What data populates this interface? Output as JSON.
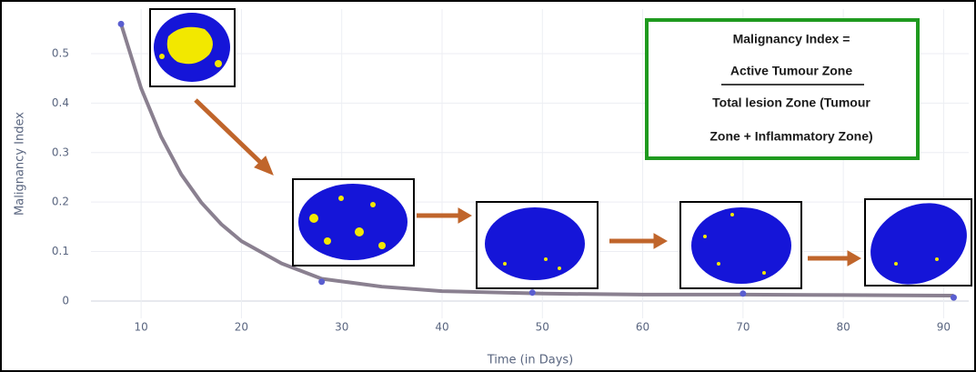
{
  "chart_data": {
    "type": "line",
    "x_label": "Time (in Days)",
    "y_label": "Malignancy Index",
    "x": [
      8,
      28,
      49,
      70,
      91
    ],
    "values": [
      0.56,
      0.039,
      0.017,
      0.015,
      0.007
    ],
    "color": "#5a5ed0",
    "curve": {
      "color": "#8a8090",
      "x": [
        8,
        10,
        12,
        14,
        16,
        18,
        20,
        24,
        28,
        34,
        40,
        50,
        60,
        70,
        80,
        91
      ],
      "values": [
        0.56,
        0.43,
        0.332,
        0.256,
        0.199,
        0.155,
        0.121,
        0.076,
        0.045,
        0.029,
        0.02,
        0.015,
        0.013,
        0.013,
        0.012,
        0.011
      ]
    },
    "xlim": [
      5,
      92.5
    ],
    "ylim": [
      -0.035,
      0.59
    ],
    "xticks": [
      10,
      20,
      30,
      40,
      50,
      60,
      70,
      80,
      90
    ],
    "yticks": [
      0,
      0.1,
      0.2,
      0.3,
      0.4,
      0.5
    ],
    "grid": true,
    "annotations": [
      "Malignancy Index =",
      "Active Tumour Zone",
      "Total lesion Zone (Tumour",
      "Zone + Inflammatory Zone)"
    ]
  }
}
